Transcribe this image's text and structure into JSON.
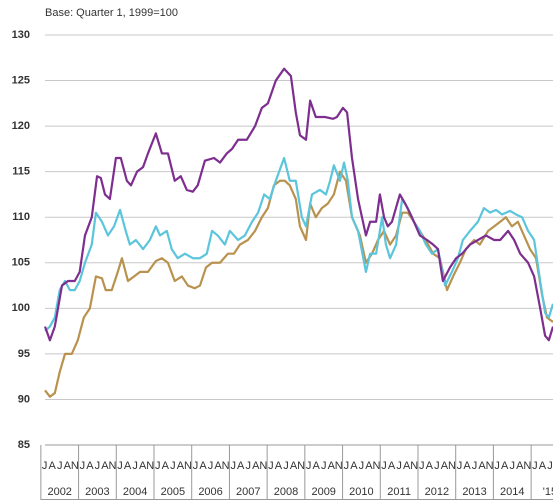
{
  "chart_data": {
    "type": "line",
    "subtitle": "Base: Quarter 1, 1999=100",
    "xlim": [
      2002.11,
      2015.58
    ],
    "ylim": [
      85,
      130
    ],
    "yticks": [
      85,
      90,
      95,
      100,
      105,
      110,
      115,
      120,
      125,
      130
    ],
    "grid": true,
    "xticks": [
      2002,
      2003,
      2004,
      2005,
      2006,
      2007,
      2008,
      2009,
      2010,
      2011,
      2012,
      2013,
      2014,
      {
        "value": 2015,
        "label": "'15"
      }
    ],
    "month_labels": [
      "J",
      "A",
      "J",
      "A",
      "N"
    ],
    "series": [
      {
        "color": "#7d2e8e",
        "x": [
          2002.11,
          2002.24,
          2002.37,
          2002.56,
          2002.72,
          2002.9,
          2003.03,
          2003.17,
          2003.35,
          2003.49,
          2003.59,
          2003.7,
          2003.83,
          2003.99,
          2004.12,
          2004.28,
          2004.39,
          2004.55,
          2004.71,
          2004.84,
          2005.05,
          2005.21,
          2005.37,
          2005.55,
          2005.71,
          2005.87,
          2006.03,
          2006.16,
          2006.35,
          2006.59,
          2006.75,
          2006.93,
          2007.07,
          2007.23,
          2007.46,
          2007.68,
          2007.86,
          2008.02,
          2008.23,
          2008.45,
          2008.63,
          2008.76,
          2008.87,
          2009.03,
          2009.14,
          2009.29,
          2009.53,
          2009.75,
          2009.85,
          2010.01,
          2010.12,
          2010.25,
          2010.41,
          2010.62,
          2010.73,
          2010.89,
          2010.99,
          2011.1,
          2011.2,
          2011.31,
          2011.52,
          2011.66,
          2011.84,
          2012.05,
          2012.24,
          2012.4,
          2012.53,
          2012.66,
          2012.85,
          2013.01,
          2013.17,
          2013.38,
          2013.59,
          2013.8,
          2014.02,
          2014.18,
          2014.39,
          2014.55,
          2014.71,
          2014.92,
          2015.08,
          2015.24,
          2015.37,
          2015.47,
          2015.58
        ],
        "values": [
          98,
          96.5,
          98,
          102.5,
          103,
          103,
          104,
          108,
          110,
          114.5,
          114.3,
          112.5,
          112,
          116.5,
          116.5,
          114,
          113.5,
          115,
          115.5,
          117,
          119.2,
          117,
          117,
          114,
          114.5,
          113,
          112.8,
          113.5,
          116.2,
          116.5,
          116,
          117,
          117.5,
          118.5,
          118.5,
          120,
          122,
          122.5,
          125,
          126.3,
          125.5,
          121.5,
          119,
          118.5,
          122.8,
          121,
          121,
          120.8,
          121,
          122,
          121.5,
          116.5,
          112,
          108,
          109.5,
          109.5,
          112.5,
          110,
          109,
          109.5,
          112.5,
          111.5,
          110,
          108,
          107.5,
          107,
          106.5,
          103,
          104.5,
          105.5,
          106,
          107,
          107.5,
          108,
          107.5,
          107.5,
          108.5,
          107.5,
          106,
          105,
          103.5,
          100,
          97,
          96.5,
          98
        ]
      },
      {
        "color": "#5bc5dc",
        "x": [
          2002.11,
          2002.24,
          2002.37,
          2002.5,
          2002.64,
          2002.77,
          2002.9,
          2003.03,
          2003.17,
          2003.35,
          2003.46,
          2003.62,
          2003.78,
          2003.94,
          2004.1,
          2004.25,
          2004.36,
          2004.52,
          2004.71,
          2004.89,
          2005.05,
          2005.16,
          2005.34,
          2005.47,
          2005.63,
          2005.82,
          2006.03,
          2006.22,
          2006.4,
          2006.54,
          2006.69,
          2006.88,
          2007.01,
          2007.23,
          2007.41,
          2007.6,
          2007.76,
          2007.92,
          2008.07,
          2008.23,
          2008.45,
          2008.6,
          2008.76,
          2008.92,
          2009.03,
          2009.19,
          2009.4,
          2009.56,
          2009.67,
          2009.77,
          2009.93,
          2010.04,
          2010.14,
          2010.25,
          2010.41,
          2010.62,
          2010.73,
          2010.89,
          2011.05,
          2011.15,
          2011.26,
          2011.42,
          2011.58,
          2011.73,
          2011.89,
          2012.05,
          2012.21,
          2012.37,
          2012.53,
          2012.72,
          2012.9,
          2013.06,
          2013.19,
          2013.38,
          2013.59,
          2013.75,
          2013.91,
          2014.07,
          2014.23,
          2014.44,
          2014.6,
          2014.76,
          2014.92,
          2015.08,
          2015.24,
          2015.37,
          2015.47,
          2015.58
        ],
        "values": [
          97.5,
          98,
          99,
          102,
          103,
          102,
          102,
          103,
          105,
          107,
          110.5,
          109.5,
          108,
          109,
          110.8,
          108.5,
          107,
          107.5,
          106.5,
          107.5,
          109,
          108,
          108.5,
          106.5,
          105.5,
          106,
          105.5,
          105.5,
          106,
          108.5,
          108,
          107,
          108.5,
          107.5,
          108,
          109.5,
          110.5,
          112.5,
          112,
          114,
          116.5,
          114,
          114,
          110,
          109,
          112.5,
          113,
          112.5,
          114,
          115.7,
          114,
          116,
          114,
          110,
          108.5,
          104,
          106,
          106,
          110,
          107,
          105.5,
          107,
          112,
          111,
          109.5,
          108.5,
          107,
          106,
          106.5,
          102.5,
          104,
          105.5,
          107.5,
          108.5,
          109.5,
          111,
          110.5,
          110.8,
          110.3,
          110.7,
          110.3,
          110,
          108.5,
          107.5,
          103,
          99.5,
          99,
          100.5
        ]
      },
      {
        "color": "#b8924e",
        "x": [
          2002.11,
          2002.24,
          2002.37,
          2002.5,
          2002.64,
          2002.82,
          2002.98,
          2003.14,
          2003.3,
          2003.46,
          2003.62,
          2003.72,
          2003.88,
          2004.04,
          2004.15,
          2004.31,
          2004.47,
          2004.63,
          2004.84,
          2005.05,
          2005.21,
          2005.37,
          2005.55,
          2005.74,
          2005.9,
          2006.08,
          2006.22,
          2006.38,
          2006.54,
          2006.75,
          2006.96,
          2007.12,
          2007.28,
          2007.49,
          2007.68,
          2007.86,
          2008.02,
          2008.18,
          2008.34,
          2008.47,
          2008.6,
          2008.76,
          2008.87,
          2009.03,
          2009.14,
          2009.29,
          2009.45,
          2009.61,
          2009.77,
          2009.93,
          2010.09,
          2010.25,
          2010.46,
          2010.62,
          2010.78,
          2010.94,
          2011.1,
          2011.26,
          2011.42,
          2011.58,
          2011.73,
          2011.89,
          2012.05,
          2012.27,
          2012.4,
          2012.58,
          2012.77,
          2012.93,
          2013.11,
          2013.27,
          2013.49,
          2013.64,
          2013.86,
          2014.02,
          2014.18,
          2014.33,
          2014.49,
          2014.65,
          2014.81,
          2014.97,
          2015.13,
          2015.29,
          2015.42,
          2015.58
        ],
        "values": [
          91,
          90.3,
          90.7,
          93,
          95,
          95,
          96.5,
          99,
          100,
          103.5,
          103.3,
          102,
          102,
          104,
          105.5,
          103,
          103.5,
          104,
          104,
          105.2,
          105.5,
          105,
          103,
          103.5,
          102.5,
          102.2,
          102.5,
          104.5,
          105,
          105,
          106,
          106,
          107,
          107.5,
          108.5,
          110,
          111,
          113.5,
          114,
          114,
          113.5,
          112,
          109,
          107.5,
          111.5,
          110,
          111,
          111.5,
          112.5,
          115,
          114,
          110,
          108,
          105,
          106,
          107.5,
          108.5,
          107,
          108,
          110.5,
          110.5,
          109.5,
          108.5,
          107,
          106,
          105.5,
          102,
          103.5,
          105,
          106.5,
          107.5,
          107,
          108.5,
          109,
          109.5,
          110,
          109,
          109.5,
          108,
          106.5,
          105.5,
          101.5,
          99,
          98.5
        ]
      }
    ]
  }
}
